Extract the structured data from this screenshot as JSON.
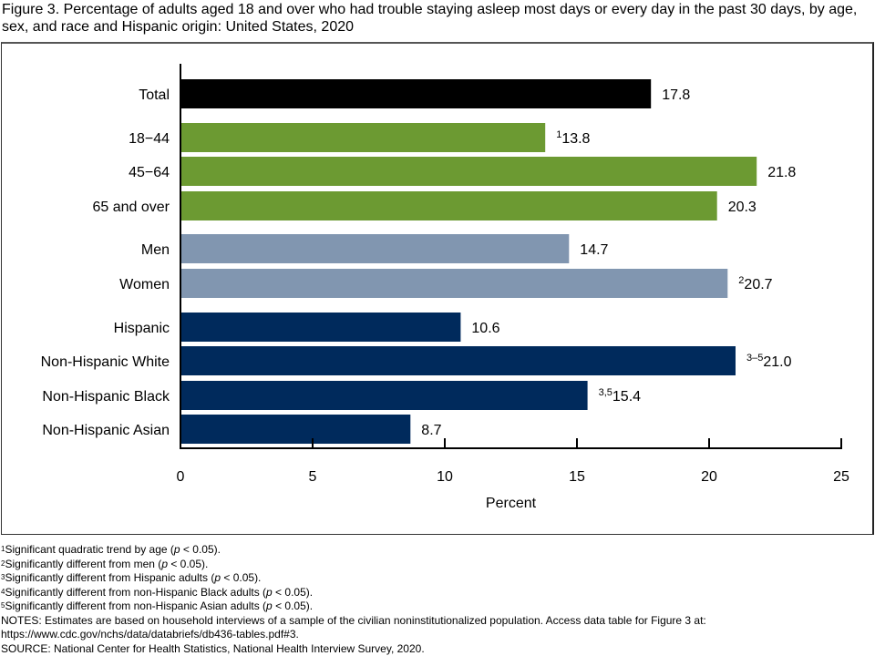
{
  "title": "Figure 3. Percentage of adults aged 18 and over who had trouble staying asleep most days or every day in the past 30 days, by age, sex, and race and Hispanic origin: United States, 2020",
  "chart_data": {
    "type": "bar",
    "orientation": "horizontal",
    "xlabel": "Percent",
    "xlim": [
      0,
      25
    ],
    "xticks": [
      "0",
      "5",
      "10",
      "15",
      "20",
      "25"
    ],
    "categories": [
      "Total",
      "18−44",
      "45−64",
      "65 and over",
      "Men",
      "Women",
      "Hispanic",
      "Non-Hispanic White",
      "Non-Hispanic Black",
      "Non-Hispanic Asian"
    ],
    "values": [
      17.8,
      13.8,
      21.8,
      20.3,
      14.7,
      20.7,
      10.6,
      21.0,
      15.4,
      8.7
    ],
    "value_labels": [
      "17.8",
      "13.8",
      "21.8",
      "20.3",
      "14.7",
      "20.7",
      "10.6",
      "21.0",
      "15.4",
      "8.7"
    ],
    "superscripts": [
      "",
      "1",
      "",
      "",
      "",
      "2",
      "",
      "3–5",
      "3,5",
      ""
    ],
    "groups": [
      "total",
      "age",
      "age",
      "age",
      "sex",
      "sex",
      "race",
      "race",
      "race",
      "race"
    ],
    "colors": {
      "total": "#000000",
      "age": "#6c9a32",
      "sex": "#8196b0",
      "race": "#002a5c"
    }
  },
  "footnotes": [
    {
      "mark": "1",
      "text_before": "Significant quadratic trend by age (",
      "p": "p",
      "text_after": " < 0.05)."
    },
    {
      "mark": "2",
      "text_before": "Significantly different from men (",
      "p": "p",
      "text_after": " < 0.05)."
    },
    {
      "mark": "3",
      "text_before": "Significantly different from Hispanic adults (",
      "p": "p",
      "text_after": " < 0.05)."
    },
    {
      "mark": "4",
      "text_before": "Significantly different from non-Hispanic Black adults (",
      "p": "p",
      "text_after": " < 0.05)."
    },
    {
      "mark": "5",
      "text_before": "Significantly different from non-Hispanic Asian adults (",
      "p": "p",
      "text_after": " < 0.05)."
    }
  ],
  "notes": "NOTES: Estimates are based on household interviews of a sample of the civilian noninstitutionalized population. Access data table for Figure 3 at:",
  "notes_url": "https://www.cdc.gov/nchs/data/databriefs/db436-tables.pdf#3.",
  "source": "SOURCE: National Center for Health Statistics, National Health Interview Survey, 2020."
}
